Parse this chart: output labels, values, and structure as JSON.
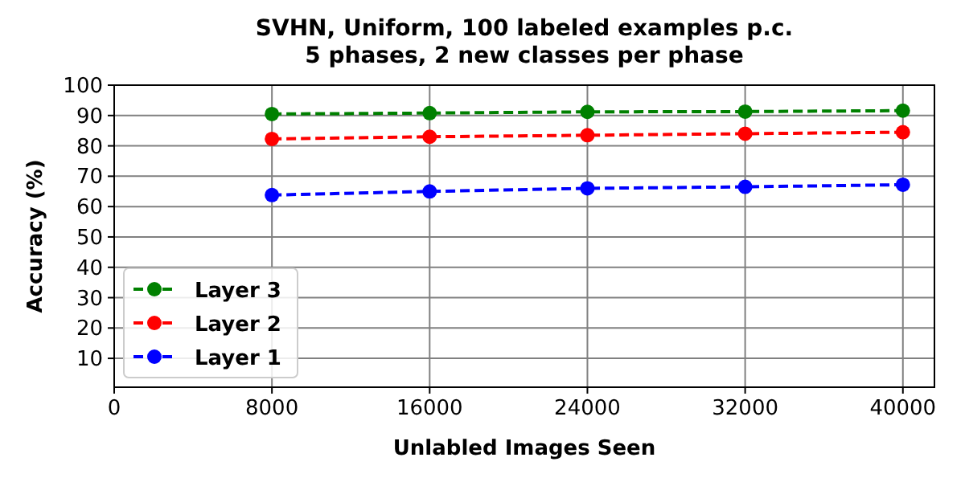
{
  "chart_data": {
    "type": "line",
    "title": "SVHN, Uniform, 100 labeled examples p.c.\n5 phases, 2 new classes per phase",
    "xlabel": "Unlabled Images Seen",
    "ylabel": "Accuracy (%)",
    "x": [
      8000,
      16000,
      24000,
      32000,
      40000
    ],
    "series": [
      {
        "name": "Layer 3",
        "color": "#008000",
        "values": [
          90.5,
          90.8,
          91.2,
          91.3,
          91.6
        ]
      },
      {
        "name": "Layer 2",
        "color": "#ff0000",
        "values": [
          82.3,
          83.0,
          83.5,
          84.0,
          84.5
        ]
      },
      {
        "name": "Layer 1",
        "color": "#0000ff",
        "values": [
          63.8,
          65.0,
          66.0,
          66.5,
          67.2
        ]
      }
    ],
    "xlim": [
      0,
      41600
    ],
    "xticks": [
      0,
      8000,
      16000,
      24000,
      32000,
      40000
    ],
    "ylim": [
      0.5,
      100
    ],
    "yticks": [
      10,
      20,
      30,
      40,
      50,
      60,
      70,
      80,
      90,
      100
    ],
    "grid": true,
    "legend": "bottom left",
    "marker": "circle",
    "line_style": "dashed"
  }
}
